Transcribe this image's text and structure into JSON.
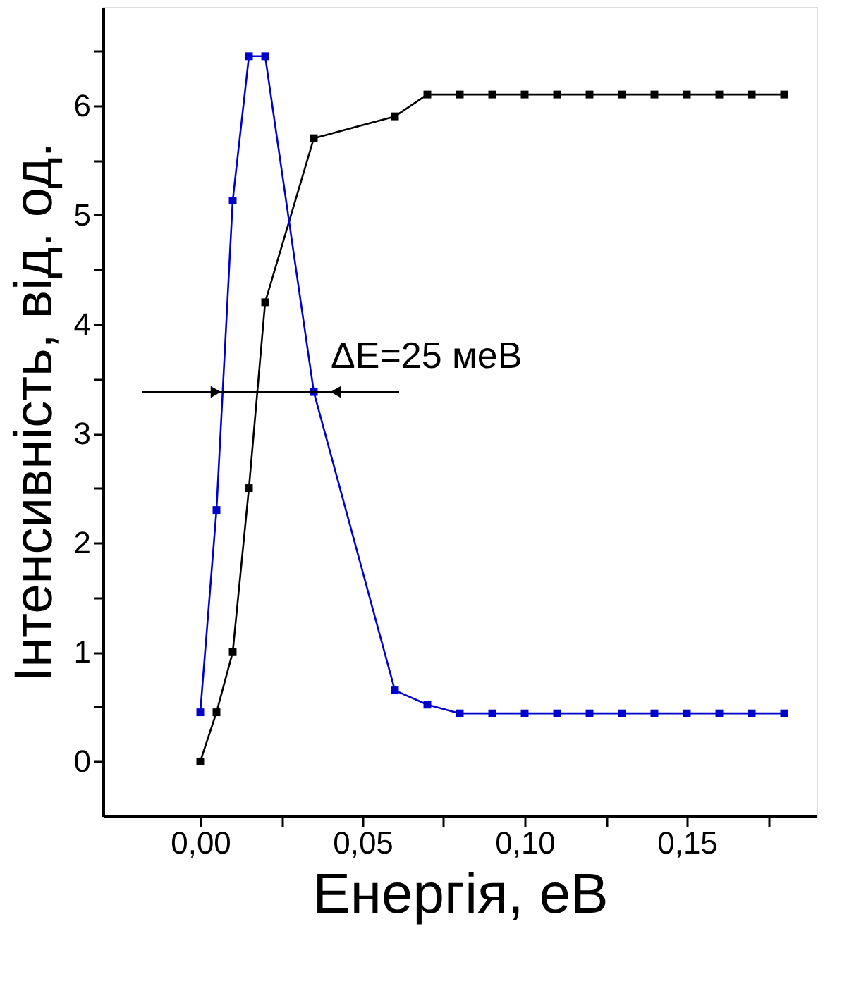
{
  "chart_data": {
    "type": "line",
    "xlabel": "Енергія, еВ",
    "ylabel": "Інтенсивність, від. од.",
    "marker": "square",
    "line_style": "solid",
    "grid": false,
    "xlim": [
      -0.03,
      0.19
    ],
    "ylim": [
      -0.5,
      6.9
    ],
    "xticks": [
      {
        "value": 0,
        "label": "0,00"
      },
      {
        "value": 0.025,
        "label": null
      },
      {
        "value": 0.05,
        "label": "0,05"
      },
      {
        "value": 0.075,
        "label": null
      },
      {
        "value": 0.1,
        "label": "0,10"
      },
      {
        "value": 0.125,
        "label": null
      },
      {
        "value": 0.15,
        "label": "0,15"
      },
      {
        "value": 0.175,
        "label": null
      }
    ],
    "yticks": [
      0,
      {
        "value": 0.5,
        "label": null
      },
      1,
      {
        "value": 1.5,
        "label": null
      },
      2,
      {
        "value": 2.5,
        "label": null
      },
      3,
      {
        "value": 3.5,
        "label": null
      },
      4,
      {
        "value": 4.5,
        "label": null
      },
      5,
      {
        "value": 5.5,
        "label": null
      },
      6,
      {
        "value": 6.5,
        "label": null
      }
    ],
    "series": [
      {
        "color": "#000000",
        "x": [
          0,
          0.005,
          0.01,
          0.015,
          0.02,
          0.035,
          0.06,
          0.07,
          0.08,
          0.09,
          0.1,
          0.11,
          0.12,
          0.13,
          0.14,
          0.15,
          0.16,
          0.17,
          0.18
        ],
        "values": [
          0,
          0.45,
          1.0,
          2.5,
          4.2,
          5.7,
          5.9,
          6.1,
          6.1,
          6.1,
          6.1,
          6.1,
          6.1,
          6.1,
          6.1,
          6.1,
          6.1,
          6.1,
          6.1
        ]
      },
      {
        "color": "#0000cc",
        "x": [
          0,
          0.005,
          0.01,
          0.015,
          0.02,
          0.035,
          0.06,
          0.07,
          0.08,
          0.09,
          0.1,
          0.11,
          0.12,
          0.13,
          0.14,
          0.15,
          0.16,
          0.17,
          0.18
        ],
        "values": [
          0.45,
          2.3,
          5.13,
          6.45,
          6.45,
          3.38,
          0.65,
          0.52,
          0.44,
          0.44,
          0.44,
          0.44,
          0.44,
          0.44,
          0.44,
          0.44,
          0.44,
          0.44,
          0.44
        ]
      }
    ],
    "annotations": [
      {
        "text": "ΔE=25 меВ",
        "x": 0.035,
        "y": 3.38
      }
    ]
  }
}
